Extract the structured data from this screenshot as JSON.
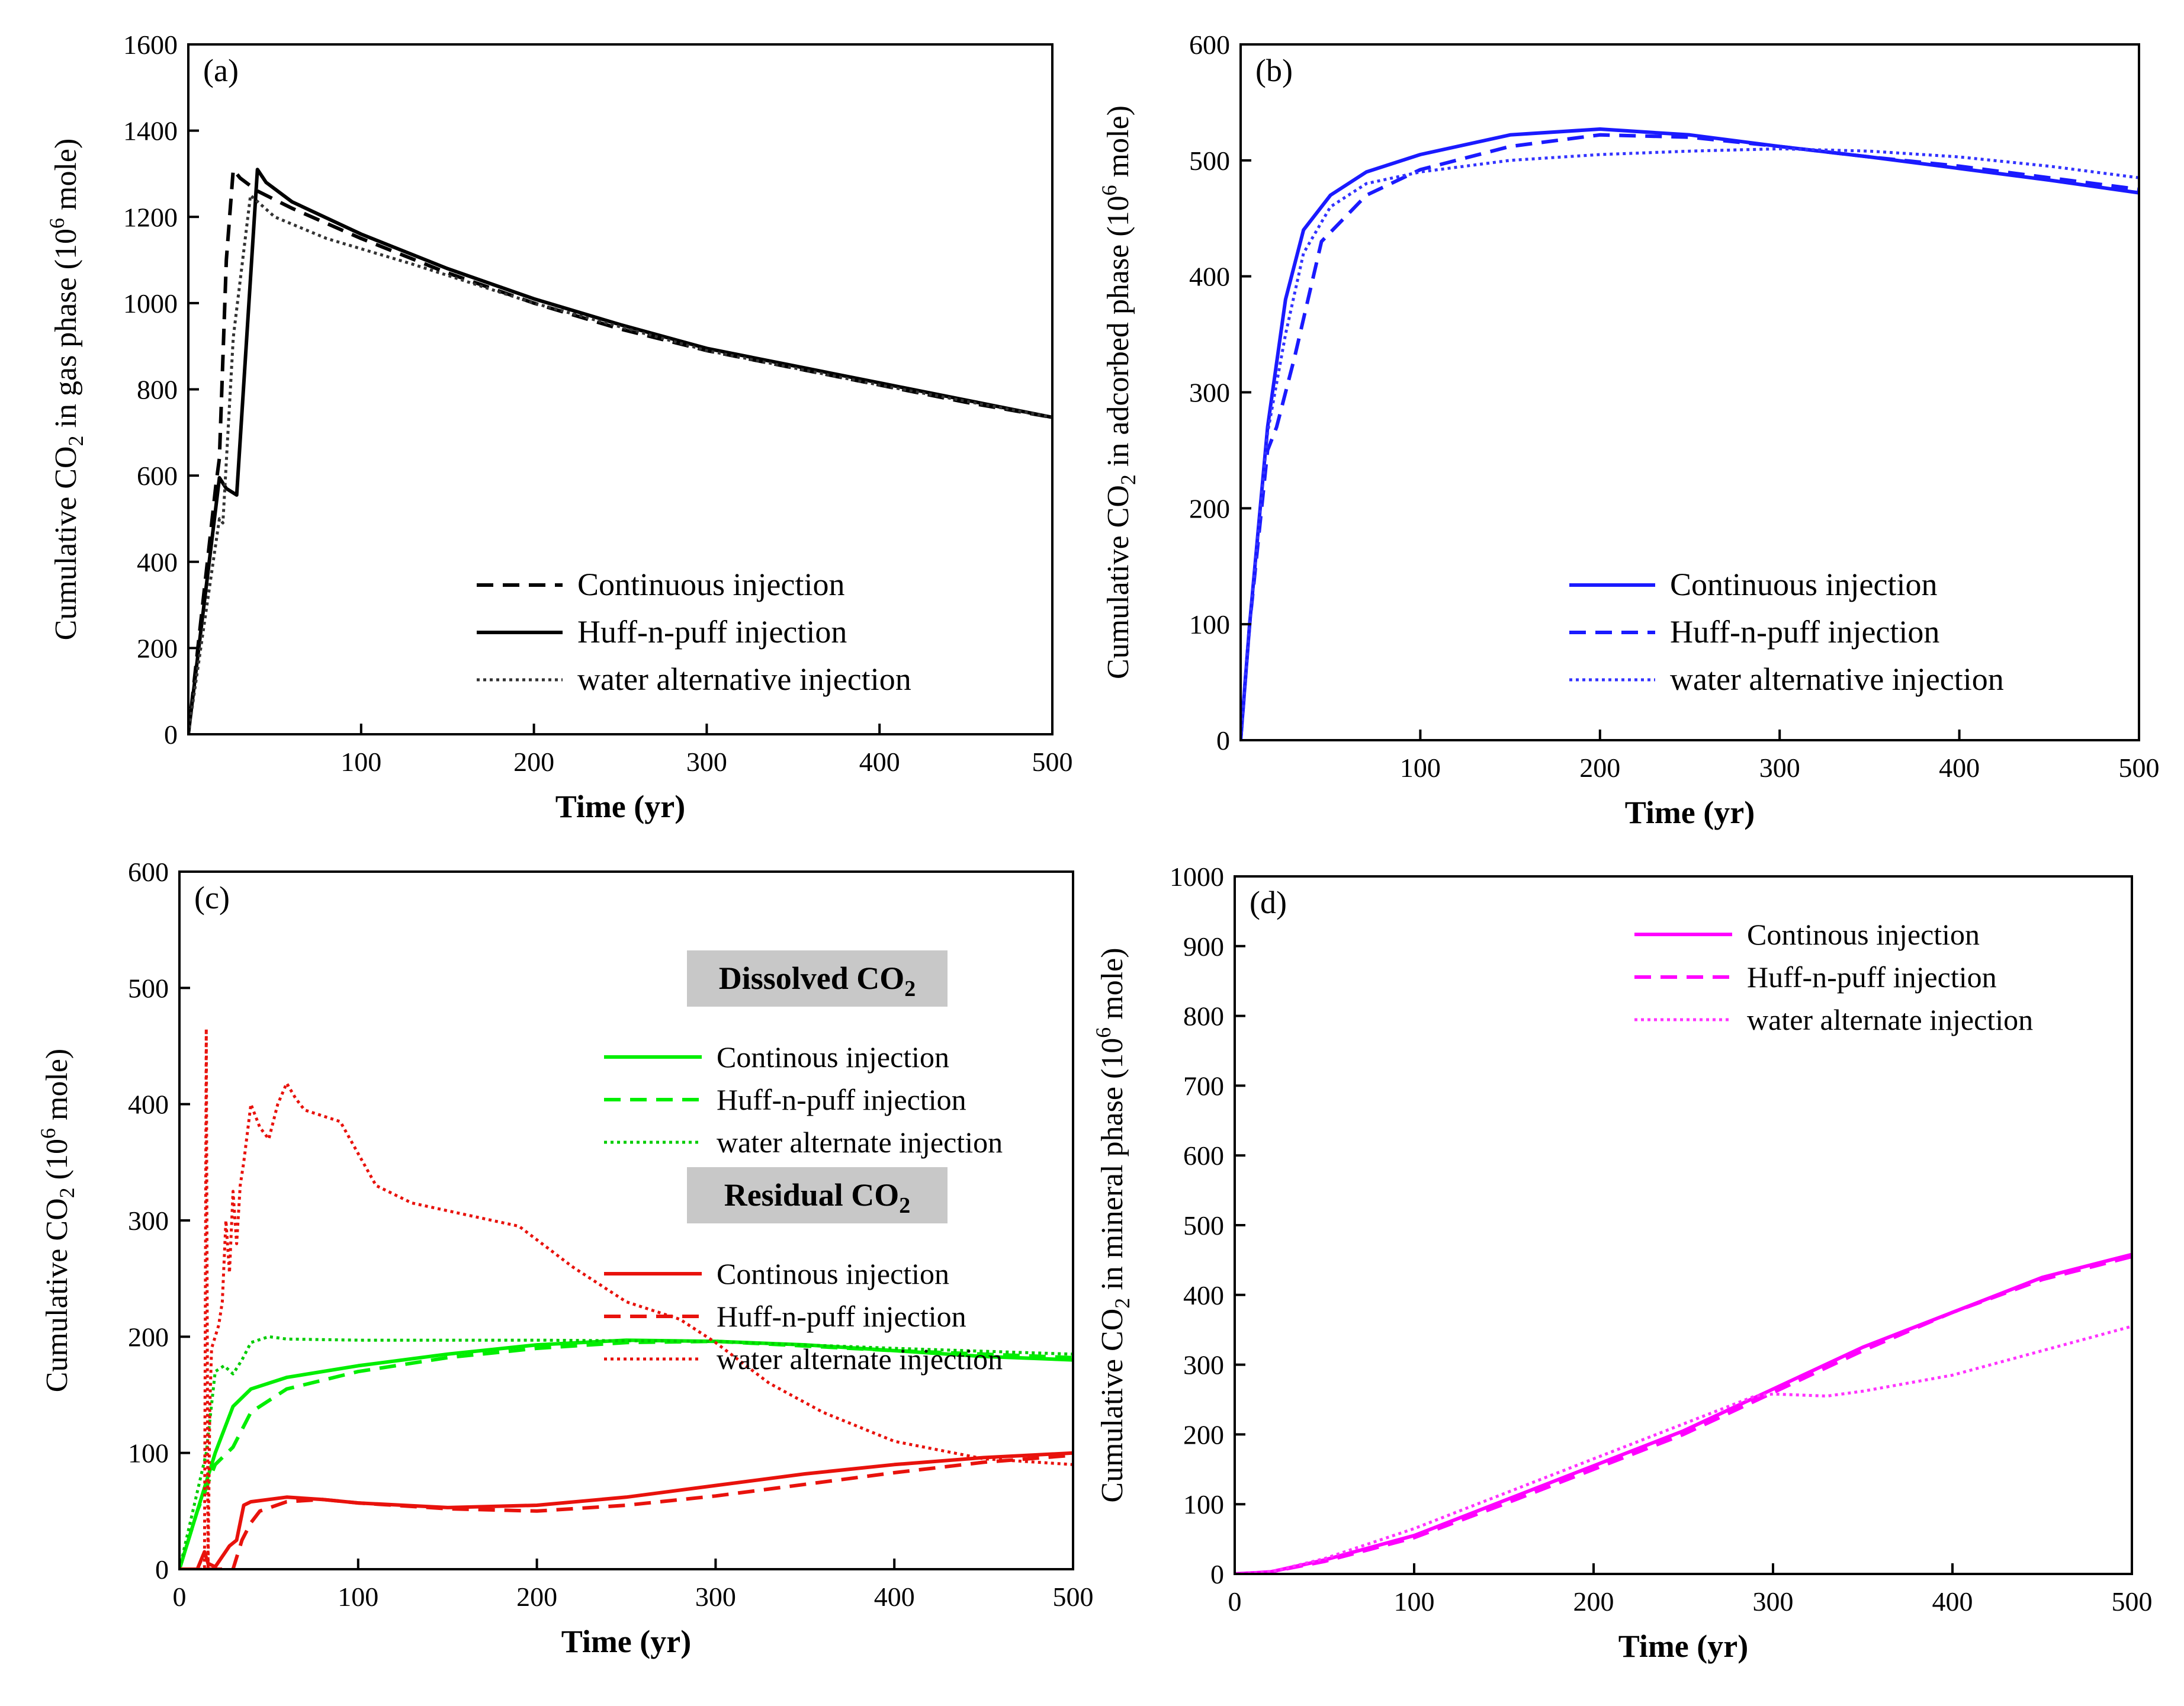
{
  "chart_data": [
    {
      "id": "a",
      "type": "line",
      "panel_label": "(a)",
      "xlabel": "Time (yr)",
      "ylabel_pre": "Cumulative CO",
      "ylabel_sub": "2",
      "ylabel_mid": " in gas phase (10",
      "ylabel_sup": "6",
      "ylabel_post": " mole)",
      "xlim": [
        0,
        500
      ],
      "ylim": [
        0,
        1600
      ],
      "xticks": [
        100,
        200,
        300,
        400,
        500
      ],
      "yticks": [
        0,
        200,
        400,
        600,
        800,
        1000,
        1200,
        1400,
        1600
      ],
      "legend_position": "bottom-right",
      "legend_groups": [],
      "series": [
        {
          "name": "Continuous injection",
          "color": "#000000",
          "dash": "dashed",
          "x": [
            0,
            16,
            18,
            22,
            26,
            30,
            40,
            60,
            100,
            150,
            200,
            250,
            300,
            350,
            400,
            450,
            500
          ],
          "y": [
            0,
            580,
            640,
            1100,
            1310,
            1290,
            1260,
            1220,
            1150,
            1070,
            1000,
            940,
            890,
            850,
            810,
            770,
            735
          ]
        },
        {
          "name": "Huff-n-puff injection",
          "color": "#000000",
          "dash": "solid",
          "x": [
            0,
            18,
            22,
            28,
            40,
            45,
            60,
            100,
            150,
            200,
            250,
            300,
            350,
            400,
            450,
            500
          ],
          "y": [
            0,
            595,
            570,
            555,
            1310,
            1280,
            1235,
            1160,
            1080,
            1010,
            950,
            895,
            855,
            815,
            775,
            735
          ]
        },
        {
          "name": "water alternative injection",
          "color": "#333333",
          "dash": "dotted",
          "x": [
            0,
            18,
            20,
            26,
            36,
            50,
            80,
            130,
            200,
            300,
            400,
            500
          ],
          "y": [
            0,
            500,
            490,
            920,
            1250,
            1200,
            1150,
            1090,
            1000,
            890,
            810,
            735
          ]
        }
      ]
    },
    {
      "id": "b",
      "type": "line",
      "panel_label": "(b)",
      "xlabel": "Time (yr)",
      "ylabel_pre": "Cumulative CO",
      "ylabel_sub": "2",
      "ylabel_mid": " in adcorbed phase (10",
      "ylabel_sup": "6",
      "ylabel_post": " mole)",
      "xlim": [
        0,
        500
      ],
      "ylim": [
        0,
        600
      ],
      "xticks": [
        100,
        200,
        300,
        400,
        500
      ],
      "yticks": [
        0,
        100,
        200,
        300,
        400,
        500,
        600
      ],
      "legend_position": "bottom-right",
      "legend_groups": [],
      "series": [
        {
          "name": "Continuous injection",
          "color": "#1a1aff",
          "dash": "solid",
          "x": [
            0,
            5,
            15,
            25,
            35,
            50,
            70,
            100,
            150,
            200,
            250,
            300,
            350,
            400,
            450,
            500
          ],
          "y": [
            0,
            100,
            270,
            380,
            440,
            470,
            490,
            505,
            522,
            527,
            522,
            512,
            503,
            493,
            483,
            472
          ]
        },
        {
          "name": "Huff-n-puff injection",
          "color": "#1a1aff",
          "dash": "dashed",
          "x": [
            0,
            5,
            15,
            20,
            30,
            45,
            70,
            100,
            150,
            200,
            250,
            300,
            350,
            400,
            450,
            500
          ],
          "y": [
            0,
            100,
            250,
            270,
            330,
            430,
            470,
            492,
            512,
            522,
            520,
            512,
            503,
            495,
            485,
            475
          ]
        },
        {
          "name": "water alternative injection",
          "color": "#3333ff",
          "dash": "dotted",
          "x": [
            0,
            5,
            15,
            25,
            35,
            50,
            70,
            100,
            150,
            200,
            250,
            300,
            350,
            400,
            450,
            500
          ],
          "y": [
            0,
            100,
            265,
            350,
            420,
            460,
            480,
            490,
            500,
            505,
            508,
            510,
            508,
            503,
            495,
            485
          ]
        }
      ]
    },
    {
      "id": "c",
      "type": "line",
      "panel_label": "(c)",
      "xlabel": "Time (yr)",
      "ylabel_pre": "Cumulative CO",
      "ylabel_sub": "2",
      "ylabel_mid": "  (10",
      "ylabel_sup": "6",
      "ylabel_post": " mole)",
      "xlim": [
        0,
        500
      ],
      "ylim": [
        0,
        600
      ],
      "xticks": [
        0,
        100,
        200,
        300,
        400,
        500
      ],
      "yticks": [
        0,
        100,
        200,
        300,
        400,
        500,
        600
      ],
      "legend_position": "top-right",
      "legend_groups": [
        {
          "header_pre": "Dissolved CO",
          "header_sub": "2",
          "first_series": 0
        },
        {
          "header_pre": "Residual CO",
          "header_sub": "2",
          "first_series": 3
        }
      ],
      "series": [
        {
          "name": "Continous injection",
          "color": "#00ee00",
          "dash": "solid",
          "x": [
            0,
            10,
            20,
            30,
            40,
            60,
            100,
            150,
            200,
            250,
            300,
            350,
            400,
            450,
            500
          ],
          "y": [
            0,
            50,
            100,
            140,
            155,
            165,
            175,
            185,
            193,
            197,
            196,
            193,
            188,
            183,
            180
          ]
        },
        {
          "name": "Huff-n-puff injection",
          "color": "#00ee00",
          "dash": "dashed",
          "x": [
            0,
            10,
            20,
            30,
            40,
            60,
            100,
            150,
            200,
            250,
            300,
            350,
            400,
            450,
            500
          ],
          "y": [
            0,
            50,
            90,
            105,
            135,
            155,
            170,
            182,
            190,
            195,
            196,
            192,
            188,
            185,
            182
          ]
        },
        {
          "name": "water alternate injection",
          "color": "#00cc00",
          "dash": "dotted",
          "x": [
            0,
            15,
            20,
            25,
            30,
            35,
            40,
            50,
            60,
            100,
            200,
            300,
            400,
            500
          ],
          "y": [
            0,
            100,
            170,
            175,
            168,
            180,
            195,
            200,
            198,
            197,
            197,
            196,
            190,
            185
          ]
        },
        {
          "name": "Continous injection",
          "color": "#e8120c",
          "dash": "solid",
          "x": [
            0,
            10,
            14,
            16,
            20,
            28,
            32,
            36,
            40,
            60,
            80,
            100,
            150,
            200,
            250,
            300,
            350,
            400,
            450,
            500
          ],
          "y": [
            0,
            0,
            15,
            5,
            2,
            20,
            25,
            55,
            58,
            62,
            60,
            57,
            53,
            55,
            62,
            72,
            82,
            90,
            96,
            100
          ]
        },
        {
          "name": "Huff-n-puff injection",
          "color": "#e8120c",
          "dash": "dashed",
          "x": [
            0,
            30,
            35,
            40,
            45,
            60,
            80,
            100,
            150,
            200,
            250,
            300,
            350,
            400,
            450,
            500
          ],
          "y": [
            0,
            0,
            25,
            40,
            50,
            58,
            60,
            57,
            52,
            50,
            55,
            63,
            73,
            83,
            92,
            98
          ]
        },
        {
          "name": "water alternate injection",
          "color": "#e8120c",
          "dash": "dotted",
          "x": [
            0,
            14,
            15,
            16,
            17,
            18,
            20,
            22,
            24,
            26,
            28,
            30,
            32,
            34,
            36,
            40,
            45,
            50,
            55,
            60,
            65,
            70,
            80,
            90,
            110,
            130,
            160,
            190,
            220,
            250,
            280,
            300,
            330,
            360,
            400,
            450,
            500
          ],
          "y": [
            0,
            0,
            465,
            0,
            140,
            190,
            200,
            210,
            230,
            300,
            255,
            325,
            280,
            330,
            350,
            400,
            380,
            370,
            400,
            418,
            405,
            395,
            390,
            385,
            330,
            315,
            305,
            295,
            260,
            230,
            215,
            195,
            160,
            135,
            110,
            95,
            90
          ]
        }
      ]
    },
    {
      "id": "d",
      "type": "line",
      "panel_label": "(d)",
      "xlabel": "Time (yr)",
      "ylabel_pre": "Cumulative CO",
      "ylabel_sub": "2",
      "ylabel_mid": " in mineral phase (10",
      "ylabel_sup": "6",
      "ylabel_post": " mole)",
      "xlim": [
        0,
        500
      ],
      "ylim": [
        0,
        1000
      ],
      "xticks": [
        0,
        100,
        200,
        300,
        400,
        500
      ],
      "yticks": [
        0,
        100,
        200,
        300,
        400,
        500,
        600,
        700,
        800,
        900,
        1000
      ],
      "legend_position": "top-right",
      "legend_groups": [],
      "series": [
        {
          "name": "Continous injection",
          "color": "#ff00ff",
          "dash": "solid",
          "x": [
            0,
            20,
            50,
            100,
            150,
            200,
            250,
            300,
            350,
            400,
            450,
            500
          ],
          "y": [
            0,
            3,
            20,
            55,
            105,
            155,
            205,
            265,
            325,
            375,
            425,
            458
          ]
        },
        {
          "name": "Huff-n-puff injection",
          "color": "#ff00ff",
          "dash": "dashed",
          "x": [
            0,
            20,
            50,
            100,
            150,
            200,
            250,
            300,
            350,
            400,
            450,
            500
          ],
          "y": [
            0,
            3,
            18,
            52,
            100,
            150,
            200,
            260,
            320,
            375,
            422,
            455
          ]
        },
        {
          "name": "water alternate injection",
          "color": "#ff33ff",
          "dash": "dotted",
          "x": [
            0,
            20,
            50,
            100,
            150,
            200,
            250,
            290,
            300,
            330,
            350,
            400,
            450,
            500
          ],
          "y": [
            0,
            3,
            22,
            65,
            115,
            165,
            215,
            255,
            258,
            255,
            262,
            285,
            320,
            355
          ]
        }
      ]
    }
  ]
}
